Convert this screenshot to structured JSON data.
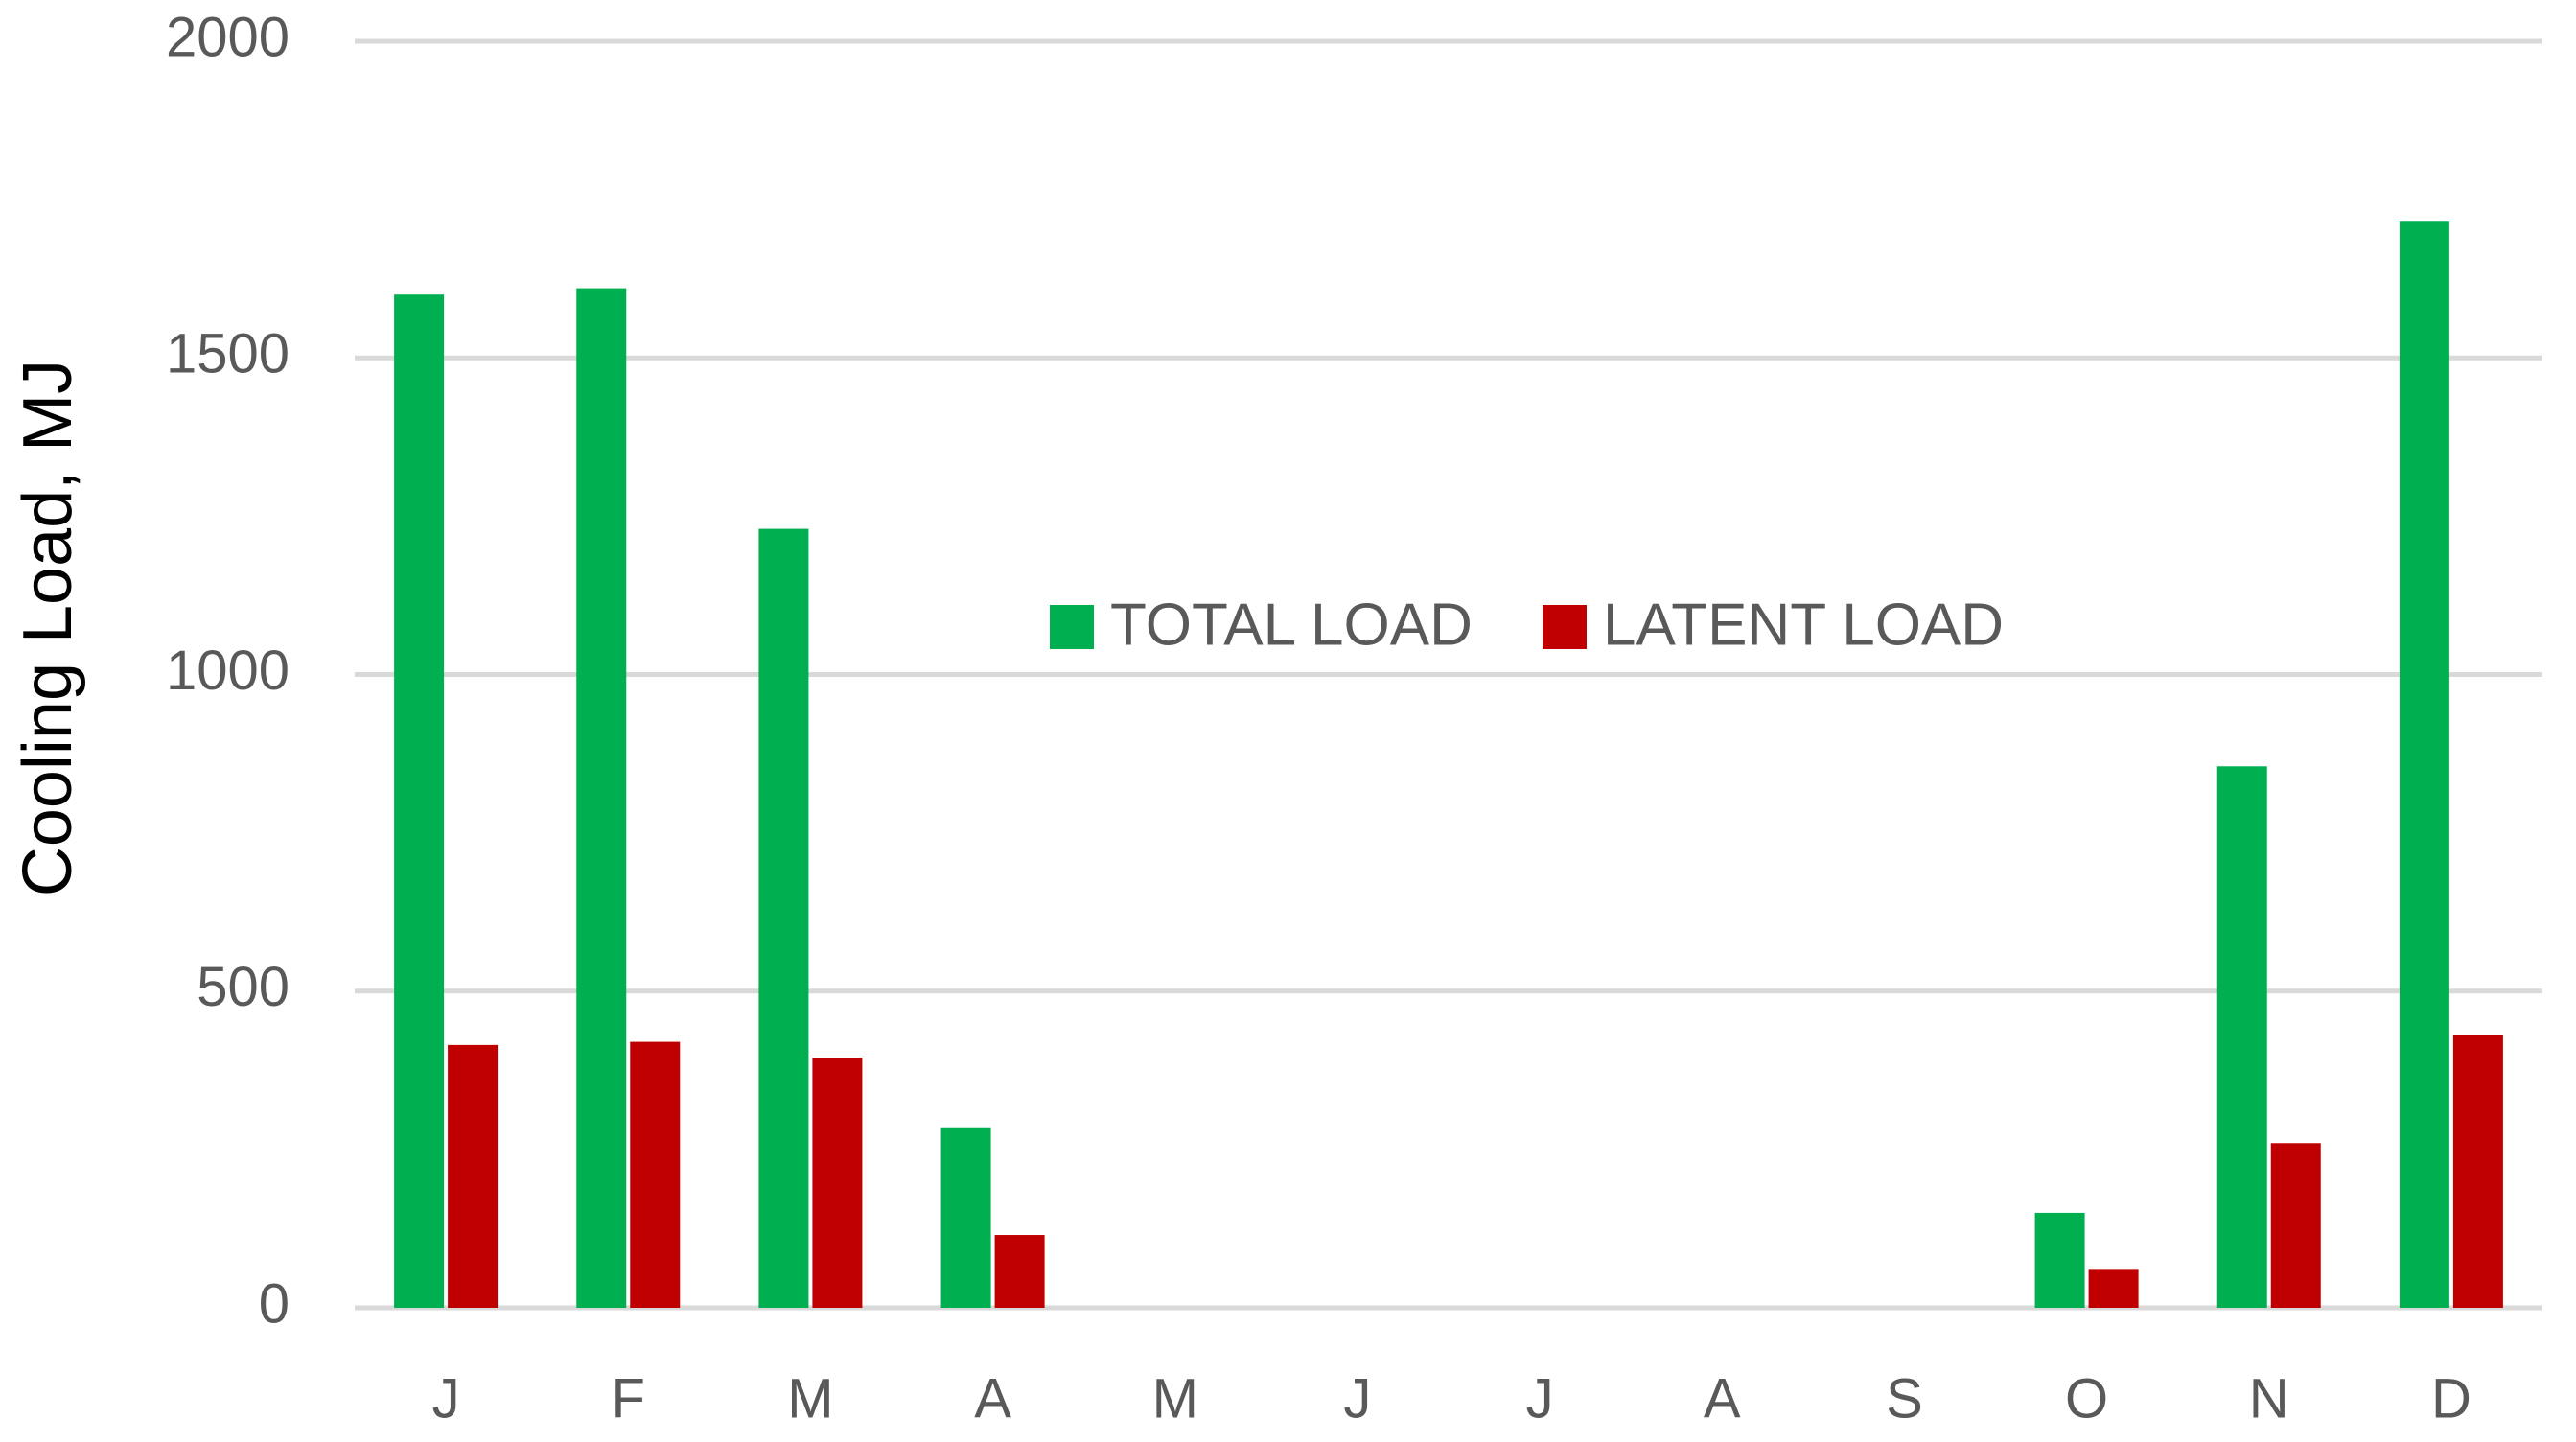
{
  "chart_data": {
    "type": "bar",
    "y_label": "Cooling Load, MJ",
    "categories": [
      "J",
      "F",
      "M",
      "A",
      "M",
      "J",
      "J",
      "A",
      "S",
      "O",
      "N",
      "D"
    ],
    "series": [
      {
        "name": "TOTAL LOAD",
        "color": "#00b050",
        "values": [
          1600,
          1610,
          1230,
          285,
          0,
          0,
          0,
          0,
          0,
          150,
          855,
          1715
        ]
      },
      {
        "name": "LATENT LOAD",
        "color": "#c00000",
        "values": [
          415,
          420,
          395,
          115,
          0,
          0,
          0,
          0,
          0,
          60,
          260,
          430
        ]
      }
    ],
    "ylim": [
      0,
      2000
    ],
    "yticks": [
      0,
      500,
      1000,
      1500,
      2000
    ],
    "grid": true
  }
}
